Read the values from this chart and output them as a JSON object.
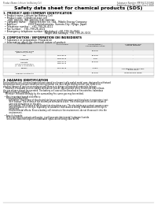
{
  "bg_color": "#ffffff",
  "header_left": "Product Name: Lithium Ion Battery Cell",
  "header_right_line1": "Substance Number: MRF8S21200HR6",
  "header_right_line2": "Establishment / Revision: Dec.1 2019",
  "title": "Safety data sheet for chemical products (SDS)",
  "s1_title": "1. PRODUCT AND COMPANY IDENTIFICATION",
  "s1_lines": [
    "  • Product name: Lithium Ion Battery Cell",
    "  • Product code: Cylindrical-type cell",
    "      (IHR 18650U, IHR 18650L, IHR 18650A)",
    "  • Company name:    Sanyo Electric Co., Ltd., Mobile Energy Company",
    "  • Address:              2001 Kamitakamatsu, Sumoto-City, Hyogo, Japan",
    "  • Telephone number:   +81-799-26-4111",
    "  • Fax number:   +81-799-26-4121",
    "  • Emergency telephone number (Weekdays) +81-799-26-3962",
    "                                                     (Night and holidays) +81-799-26-3101"
  ],
  "s2_title": "2. COMPOSITION / INFORMATION ON INGREDIENTS",
  "s2_sub1": "  • Substance or preparation: Preparation",
  "s2_sub2": "  • Information about the chemical nature of product:",
  "col_labels": [
    "Chemical name",
    "CAS number",
    "Concentration /\nConcentration range",
    "Classification and\nhazard labeling"
  ],
  "col_sub": [
    "Common chemical name",
    "",
    "",
    ""
  ],
  "table_rows": [
    [
      "Lithium cobalt oxide\n(LiMnCoO₂(CoO₂))",
      "-",
      "30-60%",
      "-"
    ],
    [
      "Iron",
      "7439-89-6",
      "15-30%",
      "-"
    ],
    [
      "Aluminum",
      "7429-90-5",
      "2-5%",
      "-"
    ],
    [
      "Graphite\n(listed as graphite-I)\n(AI Min of graphite-I)",
      "7782-42-5\n7782-40-3",
      "10-25%",
      "-"
    ],
    [
      "Copper",
      "7440-50-8",
      "5-15%",
      "Sensitization of the skin\ngroup No.2"
    ],
    [
      "Organic electrolyte",
      "-",
      "10-20%",
      "Inflammable liquid"
    ]
  ],
  "s3_title": "3. HAZARDS IDENTIFICATION",
  "s3_para": [
    "For the battery cell, chemical materials are stored in a hermetically sealed metal case, designed to withstand",
    "temperature and pressure conditions during normal use. As a result, during normal use, there is no",
    "physical danger of ignition or explosion and there is no danger of hazardous materials leakage.",
    "    However, if exposed to a fire, added mechanical shocks, decomposed, when electrolyte may release,",
    "the gas release cannot be operated. The battery cell case will be breached at fire-extreme, hazardous",
    "materials may be released.",
    "    Moreover, if heated strongly by the surrounding fire, some gas may be emitted."
  ],
  "s3_hazards": [
    "  • Most important hazard and effects:",
    "      Human health effects:",
    "          Inhalation: The release of the electrolyte has an anesthesia action and stimulates in respiratory tract.",
    "          Skin contact: The release of the electrolyte stimulates a skin. The electrolyte skin contact causes a",
    "          sore and stimulation on the skin.",
    "          Eye contact: The release of the electrolyte stimulates eyes. The electrolyte eye contact causes a sore",
    "          and stimulation on the eye. Especially, a substance that causes a strong inflammation of the eye is",
    "          contained.",
    "          Environmental effects: Since a battery cell remains in the environment, do not throw out it into the",
    "          environment.",
    "",
    "  • Specific hazards:",
    "      If the electrolyte contacts with water, it will generate detrimental hydrogen fluoride.",
    "      Since the neat electrolyte is inflammable liquid, do not bring close to fire."
  ]
}
